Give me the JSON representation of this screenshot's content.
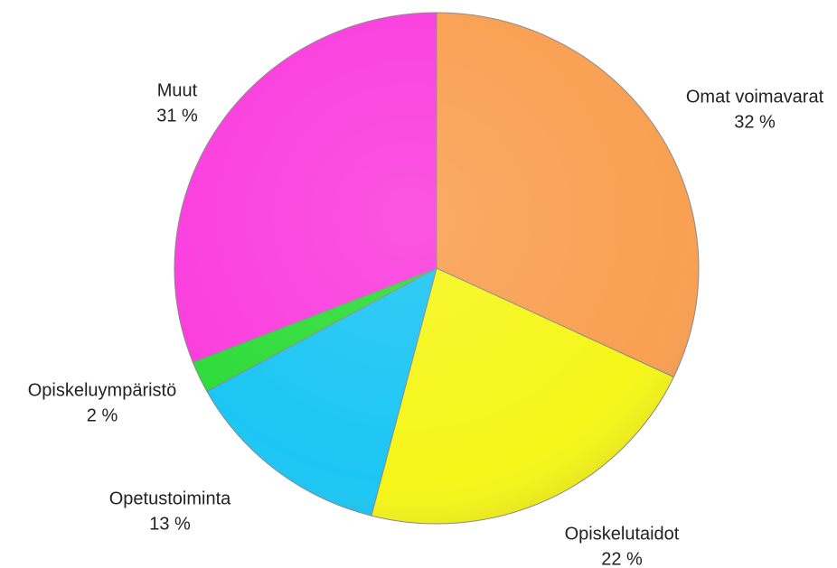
{
  "chart_data": {
    "type": "pie",
    "categories": [
      "Omat voimavarat",
      "Opiskelutaidot",
      "Opetustoiminta",
      "Opiskeluympäristö",
      "Muut"
    ],
    "values": [
      32,
      22,
      13,
      2,
      31
    ],
    "value_labels": [
      "32 %",
      "22 %",
      "13 %",
      "2 %",
      "31 %"
    ],
    "colors": [
      "#f9a052",
      "#f6f61a",
      "#1cc6f4",
      "#2fdc3a",
      "#fb3ede"
    ]
  }
}
